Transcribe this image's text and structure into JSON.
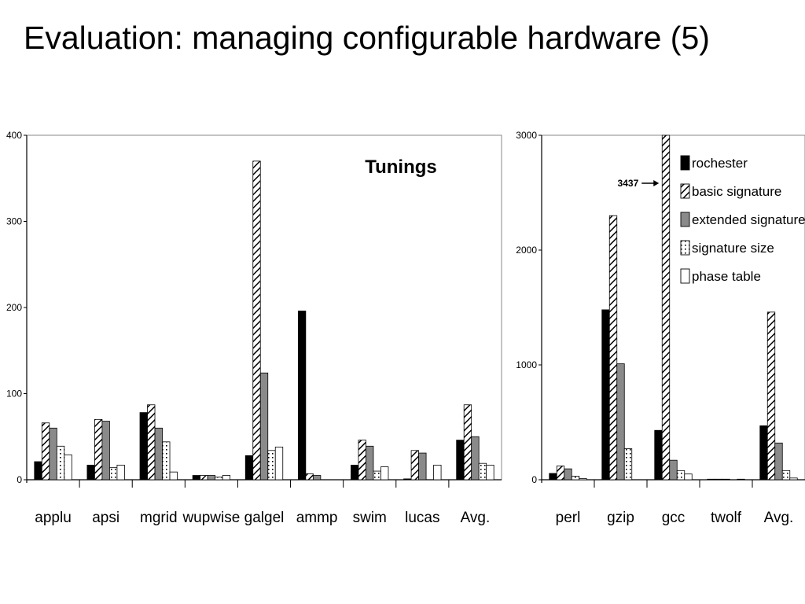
{
  "slide": {
    "title": "Evaluation: managing configurable hardware (5)"
  },
  "chart_data": [
    {
      "type": "bar",
      "title": "",
      "annotation": "Tunings",
      "xlabel": "",
      "ylabel": "",
      "ylim": [
        0,
        400
      ],
      "yticks": [
        "0",
        "100",
        "200",
        "300",
        "400"
      ],
      "grid": false,
      "categories": [
        "applu",
        "apsi",
        "mgrid",
        "wupwise",
        "galgel",
        "ammp",
        "swim",
        "lucas",
        "Avg."
      ],
      "series": [
        {
          "name": "rochester",
          "values": [
            21,
            17,
            78,
            5,
            28,
            196,
            17,
            1,
            46
          ]
        },
        {
          "name": "basic signature",
          "values": [
            66,
            70,
            87,
            5,
            370,
            7,
            46,
            34,
            87
          ]
        },
        {
          "name": "extended signature",
          "values": [
            60,
            68,
            60,
            5,
            124,
            5,
            39,
            31,
            50
          ]
        },
        {
          "name": "signature size",
          "values": [
            39,
            14,
            44,
            3,
            34,
            0,
            10,
            0,
            19
          ]
        },
        {
          "name": "phase table",
          "values": [
            29,
            17,
            9,
            5,
            38,
            0,
            15,
            17,
            17
          ]
        }
      ]
    },
    {
      "type": "bar",
      "title": "",
      "xlabel": "",
      "ylabel": "",
      "ylim": [
        0,
        3000
      ],
      "yticks": [
        "0",
        "1000",
        "2000",
        "3000"
      ],
      "grid": false,
      "legend_position": "top-right",
      "categories": [
        "perl",
        "gzip",
        "gcc",
        "twolf",
        "Avg."
      ],
      "series": [
        {
          "name": "rochester",
          "values": [
            55,
            1480,
            430,
            5,
            470
          ]
        },
        {
          "name": "basic signature",
          "values": [
            120,
            2300,
            3437,
            5,
            1460
          ]
        },
        {
          "name": "extended signature",
          "values": [
            95,
            1010,
            170,
            5,
            320
          ]
        },
        {
          "name": "signature size",
          "values": [
            30,
            270,
            80,
            0,
            80
          ]
        },
        {
          "name": "phase table",
          "values": [
            10,
            0,
            50,
            5,
            15
          ]
        }
      ],
      "callout": {
        "label": "3437",
        "category": "gcc",
        "series": "basic signature"
      }
    }
  ]
}
